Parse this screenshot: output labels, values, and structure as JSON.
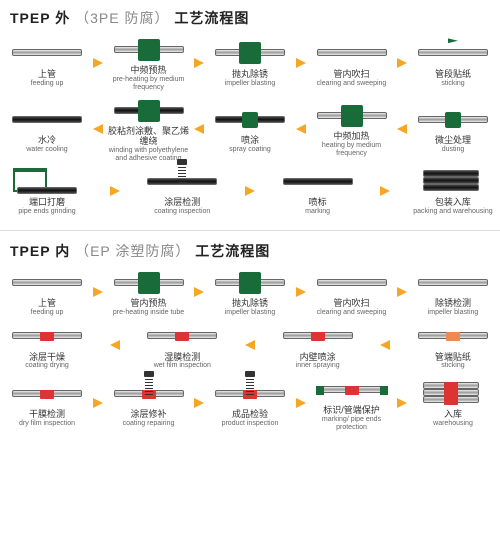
{
  "section1": {
    "title_prefix": "TPEP 外",
    "title_gray": "（3PE 防腐）",
    "title_suffix": "工艺流程图",
    "rows": [
      {
        "dir": "right",
        "steps": [
          {
            "cn": "上管",
            "en": "feeding up",
            "icon": "pipe"
          },
          {
            "cn": "中频预热",
            "en": "pre-heating by medium frequency",
            "icon": "pipe-machine"
          },
          {
            "cn": "抛丸除锈",
            "en": "impeller blasting",
            "icon": "pipe-machine"
          },
          {
            "cn": "管内吹扫",
            "en": "clearing and sweeping",
            "icon": "pipe"
          },
          {
            "cn": "管段贴纸",
            "en": "sticking",
            "icon": "pipe-flag"
          }
        ]
      },
      {
        "dir": "left",
        "steps": [
          {
            "cn": "水冷",
            "en": "water cooling",
            "icon": "pipe-dark"
          },
          {
            "cn": "胶粘剂涂敷、聚乙烯缠绕",
            "en": "winding with polyethylene and adhesive coating",
            "icon": "pipe-dark-machine"
          },
          {
            "cn": "喷涂",
            "en": "spray coating",
            "icon": "pipe-dark-machine-sm"
          },
          {
            "cn": "中频加热",
            "en": "heating by medium frequency",
            "icon": "pipe-machine"
          },
          {
            "cn": "微尘处理",
            "en": "dusting",
            "icon": "pipe-machine-sm"
          }
        ]
      },
      {
        "dir": "right",
        "steps": [
          {
            "cn": "端口打磨",
            "en": "pipe ends grinding",
            "icon": "rack"
          },
          {
            "cn": "涂层检测",
            "en": "coating inspection",
            "icon": "pipe-dark-spring"
          },
          {
            "cn": "喷标",
            "en": "marking",
            "icon": "pipe-dark"
          },
          {
            "cn": "包装入库",
            "en": "packing and warehousing",
            "icon": "stack-dark"
          }
        ]
      }
    ]
  },
  "section2": {
    "title_prefix": "TPEP 内",
    "title_gray": "（EP 涂塑防腐）",
    "title_suffix": "工艺流程图",
    "rows": [
      {
        "dir": "right",
        "steps": [
          {
            "cn": "上管",
            "en": "feeding up",
            "icon": "pipe"
          },
          {
            "cn": "管内预热",
            "en": "pre-heating inside tube",
            "icon": "pipe-machine"
          },
          {
            "cn": "抛丸除锈",
            "en": "impeller blasting",
            "icon": "pipe-machine"
          },
          {
            "cn": "管内吹扫",
            "en": "clearing and sweeping",
            "icon": "pipe"
          },
          {
            "cn": "除锈检测",
            "en": "impeller blasting",
            "icon": "pipe"
          }
        ]
      },
      {
        "dir": "left",
        "steps": [
          {
            "cn": "涂层干燥",
            "en": "coating drying",
            "icon": "pipe-red"
          },
          {
            "cn": "湿膜检测",
            "en": "wet film inspection",
            "icon": "pipe-red"
          },
          {
            "cn": "内壁喷涂",
            "en": "inner spraying",
            "icon": "pipe-red"
          },
          {
            "cn": "管端贴纸",
            "en": "sticking",
            "icon": "pipe-orange"
          }
        ]
      },
      {
        "dir": "right",
        "steps": [
          {
            "cn": "干膜检测",
            "en": "dry film inspection",
            "icon": "pipe-red"
          },
          {
            "cn": "涂层修补",
            "en": "coating repairing",
            "icon": "pipe-red-spring"
          },
          {
            "cn": "成品检验",
            "en": "product inspection",
            "icon": "pipe-red-spring"
          },
          {
            "cn": "标识/管端保护",
            "en": "marking/ pipe ends protection",
            "icon": "pipe-red-ends"
          },
          {
            "cn": "入库",
            "en": "warehousing",
            "icon": "stack-red"
          }
        ]
      }
    ]
  },
  "colors": {
    "arrow": "#f5a623",
    "machine": "#1a6b3a",
    "red_patch": "#d33",
    "text_cn": "#333333",
    "text_en": "#666666",
    "title": "#222222",
    "title_gray": "#888888"
  }
}
